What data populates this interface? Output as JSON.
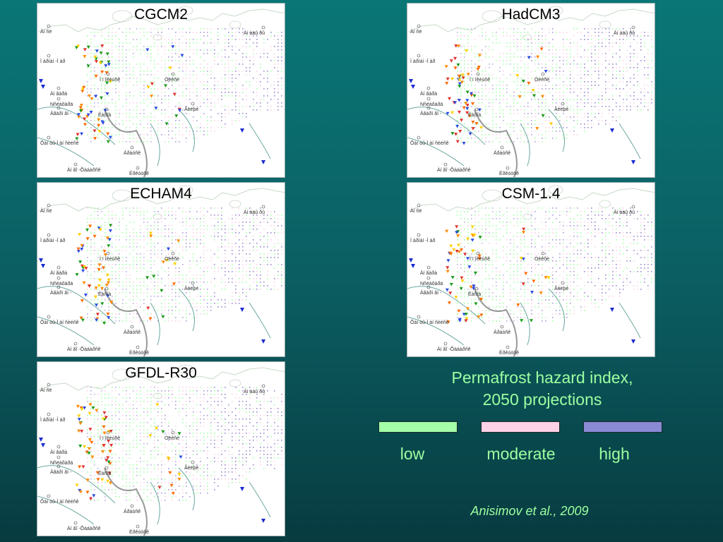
{
  "panels": [
    {
      "title": "CGCM2"
    },
    {
      "title": "HadCM3"
    },
    {
      "title": "ECHAM4"
    },
    {
      "title": "CSM-1.4"
    },
    {
      "title": "GFDL-R30"
    }
  ],
  "map_labels": [
    "Àí ñë",
    "Àí àäû ðû",
    "Ì àðìàí -Ì àð",
    "Òèêñè",
    "Àí ãàðà",
    "Nñëàõàðä",
    "Ì ï îêèúñê",
    "Àãàðí ãí -",
    "Êàñîà",
    "Õàí òû-Ì àí ñèéñê",
    "Âèëþé",
    "Áðàòñê",
    "Àí ãî -Õàáàðñê",
    "Èðêóòñê"
  ],
  "legend": {
    "title": "Permafrost hazard index,",
    "subtitle": "2050 projections",
    "items": [
      {
        "label": "low",
        "color": "#a4ffa8"
      },
      {
        "label": "moderate",
        "color": "#fcd2e6"
      },
      {
        "label": "high",
        "color": "#8a8ad4"
      }
    ]
  },
  "citation": "Anisimov et al., 2009"
}
